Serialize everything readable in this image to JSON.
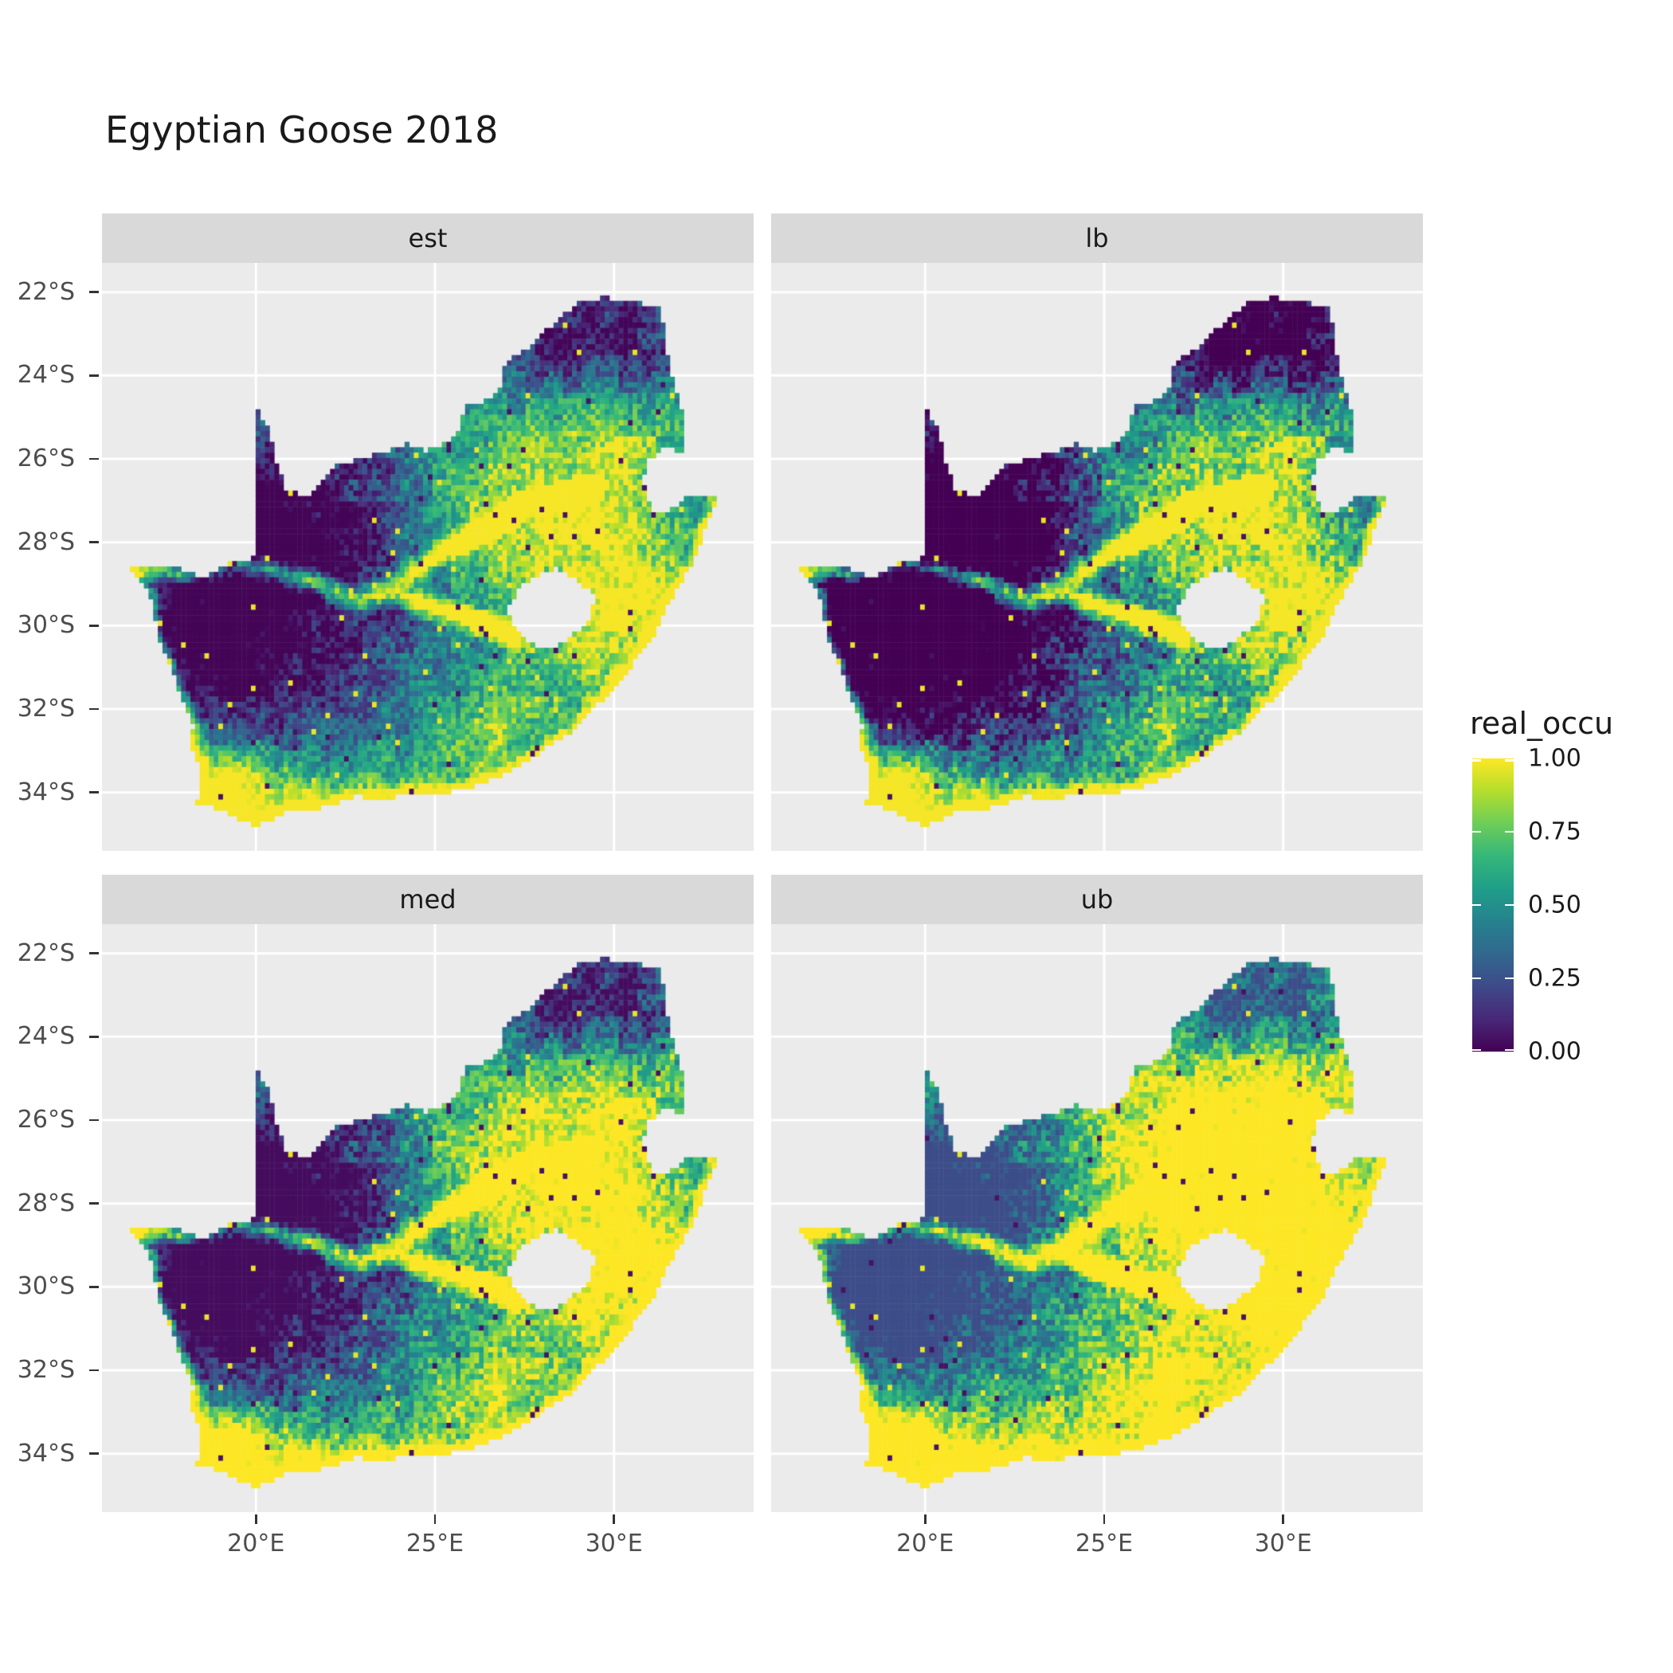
{
  "title": "Egyptian Goose 2018",
  "facets": [
    {
      "label": "est"
    },
    {
      "label": "lb"
    },
    {
      "label": "med"
    },
    {
      "label": "ub"
    }
  ],
  "y_axis": {
    "tick_labels": [
      "22°S",
      "24°S",
      "26°S",
      "28°S",
      "30°S",
      "32°S",
      "34°S"
    ],
    "tick_values": [
      22,
      24,
      26,
      28,
      30,
      32,
      34
    ]
  },
  "x_axis": {
    "tick_labels": [
      "20°E",
      "25°E",
      "30°E"
    ],
    "tick_values": [
      20,
      25,
      30
    ]
  },
  "legend": {
    "title": "real_occu",
    "tick_labels": [
      "1.00",
      "0.75",
      "0.50",
      "0.25",
      "0.00"
    ],
    "tick_values": [
      1.0,
      0.75,
      0.5,
      0.25,
      0.0
    ]
  },
  "colors": {
    "panel_bg": "#EBEBEB",
    "strip_bg": "#D9D9D9",
    "grid": "#FFFFFF",
    "axis_text": "#4D4D4D",
    "tick_mark": "#333333",
    "title_text": "#1A1A1A",
    "viridis": [
      "#440154",
      "#482878",
      "#3E4A89",
      "#31688E",
      "#26828E",
      "#1F9E89",
      "#35B779",
      "#6DCD59",
      "#B4DE2C",
      "#FDE725"
    ]
  },
  "chart_data": {
    "type": "heatmap",
    "subtype": "faceted-raster-occupancy-map",
    "title": "Egyptian Goose 2018",
    "facet_labels": [
      "est",
      "lb",
      "med",
      "ub"
    ],
    "fill_variable": "real_occu",
    "fill_range": [
      0.0,
      1.0
    ],
    "legend_breaks": [
      1.0,
      0.75,
      0.5,
      0.25,
      0.0
    ],
    "palette": "viridis",
    "legend_position": "right",
    "grid": true,
    "x_axis": {
      "tick_values": [
        20,
        25,
        30
      ],
      "tick_labels": [
        "20°E",
        "25°E",
        "30°E"
      ],
      "range_deg_east": [
        15.7,
        33.9
      ]
    },
    "y_axis": {
      "tick_values": [
        22,
        24,
        26,
        28,
        30,
        32,
        34
      ],
      "tick_labels": [
        "22°S",
        "24°S",
        "26°S",
        "28°S",
        "30°S",
        "32°S",
        "34°S"
      ],
      "range_deg_south": [
        21.3,
        35.4
      ]
    },
    "region": "South Africa raster map; Lesotho and Eswatini shown as gaps in the raster",
    "facet_notes": {
      "est": "Estimated occupancy: very low (dark purple) across arid northwest interior (Kalahari/Bushmanland), high (yellow) along south and east coasts, southwest Cape, highveld and Orange/Vaal river corridors; mixed teal-green in Karoo and Limpopo north",
      "lb": "Lower bound: same spatial pattern as est but overall darker/lower values",
      "med": "Median: same spatial pattern as est, slightly brighter",
      "ub": "Upper bound: mostly high occupancy (yellow), northwest interior moderate blue-teal with scattered dark cells"
    }
  }
}
